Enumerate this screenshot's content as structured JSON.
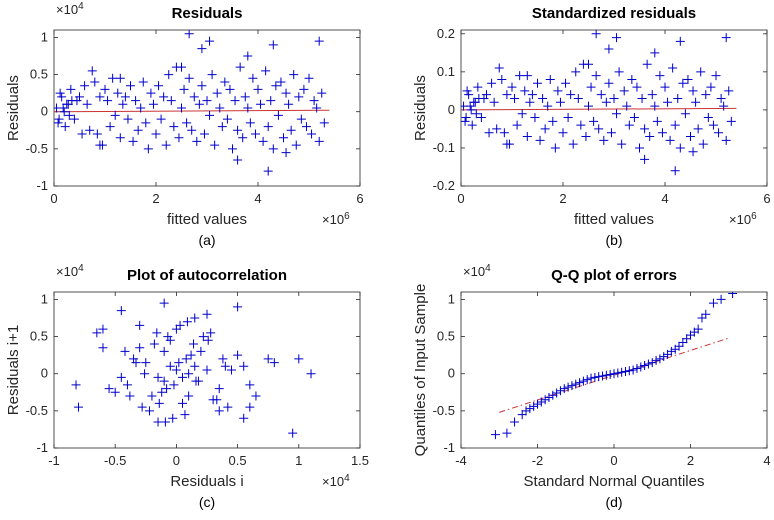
{
  "chart_data": [
    {
      "id": "a",
      "type": "scatter",
      "title": "Residuals",
      "xlabel": "fitted values",
      "ylabel": "Residuals",
      "sublabel": "(a)",
      "xlim": [
        0,
        6
      ],
      "ylim": [
        -1,
        1.1
      ],
      "xticks": [
        "0",
        "2",
        "4",
        "6"
      ],
      "yticks": [
        "-1",
        "-0.5",
        "0",
        "0.5",
        "1"
      ],
      "x_exponent": "×10^6",
      "y_exponent": "×10^4",
      "marker": "+",
      "marker_color": "#0000cc",
      "fit_line": {
        "points": [
          [
            0,
            0.0
          ],
          [
            5.4,
            0.02
          ]
        ],
        "color": "#cc3333"
      },
      "x": [
        0.05,
        0.1,
        0.15,
        0.2,
        0.25,
        0.3,
        0.35,
        0.08,
        0.12,
        0.18,
        0.22,
        0.28,
        0.33,
        0.4,
        0.45,
        0.5,
        0.55,
        0.6,
        0.65,
        0.7,
        0.75,
        0.8,
        0.85,
        0.9,
        0.95,
        1.0,
        1.05,
        1.1,
        1.15,
        1.2,
        1.25,
        1.3,
        1.35,
        1.4,
        1.45,
        1.5,
        1.55,
        1.6,
        1.65,
        1.7,
        1.75,
        1.8,
        1.85,
        1.9,
        1.95,
        2.0,
        2.05,
        2.1,
        2.15,
        2.2,
        2.25,
        2.3,
        2.35,
        2.4,
        2.45,
        2.5,
        2.55,
        2.6,
        2.65,
        2.7,
        2.75,
        2.8,
        2.85,
        2.9,
        2.95,
        3.0,
        3.05,
        3.1,
        3.15,
        3.2,
        3.25,
        3.3,
        3.35,
        3.4,
        3.45,
        3.5,
        3.55,
        3.6,
        3.65,
        3.7,
        3.75,
        3.8,
        3.85,
        3.9,
        3.95,
        4.0,
        4.05,
        4.1,
        4.15,
        4.2,
        4.25,
        4.3,
        4.35,
        4.4,
        4.45,
        4.5,
        4.55,
        4.6,
        4.65,
        4.7,
        4.75,
        4.8,
        4.85,
        4.9,
        4.95,
        5.0,
        5.05,
        5.1,
        5.15,
        5.2,
        5.25,
        5.3,
        2.65,
        2.9,
        3.05,
        3.8,
        4.3,
        4.2,
        2.5,
        3.6,
        4.55,
        1.3,
        0.9,
        5.2
      ],
      "y": [
        0.05,
        -0.1,
        0.2,
        0.0,
        0.1,
        -0.05,
        0.15,
        -0.15,
        0.25,
        0.05,
        -0.2,
        0.1,
        0.3,
        -0.1,
        0.15,
        0.2,
        -0.3,
        0.35,
        0.1,
        -0.25,
        0.55,
        0.4,
        -0.3,
        0.2,
        -0.45,
        0.3,
        0.15,
        -0.2,
        0.45,
        -0.05,
        0.25,
        -0.35,
        0.1,
        0.2,
        -0.1,
        0.35,
        -0.4,
        0.15,
        -0.25,
        0.05,
        0.4,
        -0.15,
        -0.5,
        0.25,
        0.1,
        -0.3,
        0.35,
        -0.1,
        0.2,
        -0.45,
        0.5,
        0.15,
        -0.2,
        0.6,
        -0.35,
        0.05,
        0.3,
        -0.15,
        0.45,
        -0.25,
        0.2,
        -0.4,
        0.1,
        0.35,
        -0.3,
        0.15,
        -0.05,
        0.5,
        -0.45,
        0.25,
        0.05,
        -0.2,
        0.4,
        -0.1,
        0.3,
        -0.5,
        0.15,
        -0.25,
        0.6,
        -0.35,
        0.2,
        0.05,
        -0.15,
        0.45,
        -0.3,
        0.3,
        0.1,
        -0.4,
        0.55,
        -0.2,
        0.15,
        -0.5,
        0.35,
        -0.05,
        0.4,
        -0.35,
        0.25,
        0.1,
        -0.25,
        0.5,
        -0.45,
        0.2,
        -0.1,
        0.3,
        -0.2,
        0.45,
        -0.3,
        0.15,
        0.05,
        -0.4,
        0.25,
        -0.15,
        1.05,
        0.85,
        0.95,
        0.75,
        0.9,
        -0.8,
        0.6,
        -0.65,
        -0.55,
        0.45,
        -0.45,
        0.95
      ]
    },
    {
      "id": "b",
      "type": "scatter",
      "title": "Standardized residuals",
      "xlabel": "fitted values",
      "ylabel": "Residuals",
      "sublabel": "(b)",
      "xlim": [
        0,
        6
      ],
      "ylim": [
        -0.2,
        0.21
      ],
      "xticks": [
        "0",
        "2",
        "4",
        "6"
      ],
      "yticks": [
        "-0.2",
        "-0.1",
        "0",
        "0.1",
        "0.2"
      ],
      "x_exponent": "×10^6",
      "marker": "+",
      "marker_color": "#0000cc",
      "fit_line": {
        "points": [
          [
            0,
            0.0
          ],
          [
            5.4,
            0.004
          ]
        ],
        "color": "#cc3333"
      },
      "x": [
        0.05,
        0.1,
        0.15,
        0.2,
        0.25,
        0.3,
        0.35,
        0.08,
        0.12,
        0.18,
        0.22,
        0.28,
        0.33,
        0.4,
        0.45,
        0.5,
        0.55,
        0.6,
        0.65,
        0.7,
        0.75,
        0.8,
        0.85,
        0.9,
        0.95,
        1.0,
        1.05,
        1.1,
        1.15,
        1.2,
        1.25,
        1.3,
        1.35,
        1.4,
        1.45,
        1.5,
        1.55,
        1.6,
        1.65,
        1.7,
        1.75,
        1.8,
        1.85,
        1.9,
        1.95,
        2.0,
        2.05,
        2.1,
        2.15,
        2.2,
        2.25,
        2.3,
        2.35,
        2.4,
        2.45,
        2.5,
        2.55,
        2.6,
        2.65,
        2.7,
        2.75,
        2.8,
        2.85,
        2.9,
        2.95,
        3.0,
        3.05,
        3.1,
        3.15,
        3.2,
        3.25,
        3.3,
        3.35,
        3.4,
        3.45,
        3.5,
        3.55,
        3.6,
        3.65,
        3.7,
        3.75,
        3.8,
        3.85,
        3.9,
        3.95,
        4.0,
        4.05,
        4.1,
        4.15,
        4.2,
        4.25,
        4.3,
        4.35,
        4.4,
        4.45,
        4.5,
        4.55,
        4.6,
        4.65,
        4.7,
        4.75,
        4.8,
        4.85,
        4.9,
        4.95,
        5.0,
        5.05,
        5.1,
        5.15,
        5.2,
        5.25,
        5.3,
        2.65,
        2.9,
        3.05,
        3.8,
        4.3,
        4.2,
        2.5,
        3.6,
        4.55,
        1.3,
        0.9,
        5.2
      ],
      "y": [
        0.01,
        -0.02,
        0.04,
        0.0,
        0.02,
        -0.01,
        0.03,
        -0.03,
        0.05,
        0.01,
        -0.04,
        0.02,
        0.06,
        -0.02,
        0.03,
        0.04,
        -0.06,
        0.07,
        0.02,
        -0.05,
        0.11,
        0.08,
        -0.06,
        0.04,
        -0.09,
        0.06,
        0.03,
        -0.04,
        0.09,
        -0.01,
        0.05,
        -0.07,
        0.02,
        0.04,
        -0.02,
        0.07,
        -0.08,
        0.03,
        -0.05,
        0.01,
        0.08,
        -0.03,
        -0.1,
        0.05,
        0.02,
        -0.06,
        0.07,
        -0.02,
        0.04,
        -0.09,
        0.1,
        0.03,
        -0.04,
        0.12,
        -0.07,
        0.01,
        0.06,
        -0.03,
        0.09,
        -0.05,
        0.04,
        -0.08,
        0.02,
        0.07,
        -0.06,
        0.03,
        -0.01,
        0.1,
        -0.09,
        0.05,
        0.01,
        -0.04,
        0.08,
        -0.02,
        0.06,
        -0.1,
        0.03,
        -0.05,
        0.12,
        -0.07,
        0.04,
        0.01,
        -0.03,
        0.09,
        -0.06,
        0.06,
        0.02,
        -0.08,
        0.11,
        -0.04,
        0.03,
        -0.1,
        0.07,
        -0.01,
        0.08,
        -0.07,
        0.05,
        0.02,
        -0.05,
        0.1,
        -0.09,
        0.04,
        -0.02,
        0.06,
        -0.04,
        0.09,
        -0.06,
        0.03,
        0.01,
        -0.08,
        0.05,
        -0.03,
        0.2,
        0.16,
        0.19,
        0.15,
        0.18,
        -0.16,
        0.12,
        -0.13,
        -0.11,
        0.09,
        -0.09,
        0.19
      ]
    },
    {
      "id": "c",
      "type": "scatter",
      "title": "Plot of autocorrelation",
      "xlabel": "Residuals i",
      "ylabel": "Residuals i+1",
      "sublabel": "(c)",
      "xlim": [
        -1,
        1.5
      ],
      "ylim": [
        -1,
        1.1
      ],
      "xticks": [
        "-1",
        "-0.5",
        "0",
        "0.5",
        "1",
        "1.5"
      ],
      "yticks": [
        "-1",
        "-0.5",
        "0",
        "0.5",
        "1"
      ],
      "x_exponent": "×10^4",
      "y_exponent": "×10^4",
      "marker": "+",
      "marker_color": "#0000cc",
      "x": [
        0.0,
        0.05,
        -0.05,
        0.1,
        -0.1,
        0.02,
        -0.02,
        0.08,
        -0.08,
        0.15,
        -0.15,
        0.2,
        -0.2,
        0.12,
        -0.12,
        0.25,
        -0.25,
        0.3,
        -0.3,
        0.18,
        -0.18,
        0.05,
        -0.05,
        0.35,
        -0.35,
        0.4,
        -0.4,
        0.22,
        -0.22,
        0.1,
        -0.1,
        0.45,
        -0.45,
        0.28,
        -0.28,
        0.0,
        0.5,
        -0.5,
        0.33,
        -0.33,
        0.07,
        -0.07,
        0.55,
        -0.55,
        0.14,
        -0.14,
        0.6,
        -0.6,
        0.38,
        -0.38,
        0.03,
        -0.03,
        0.26,
        -0.26,
        0.42,
        -0.42,
        0.16,
        -0.16,
        0.09,
        -0.09,
        -0.82,
        -0.8,
        -0.65,
        -0.6,
        0.75,
        0.8,
        0.95,
        1.0,
        1.1,
        0.65,
        -0.1,
        0.15,
        0.5,
        -0.45,
        0.6,
        0.55,
        -0.15,
        0.25,
        -0.3,
        0.35
      ],
      "y": [
        0.05,
        -0.05,
        0.1,
        0.0,
        -0.1,
        0.15,
        -0.15,
        0.2,
        -0.2,
        0.1,
        -0.05,
        0.3,
        -0.3,
        0.25,
        -0.25,
        0.05,
        0.15,
        -0.35,
        0.35,
        -0.1,
        0.4,
        -0.4,
        0.45,
        -0.2,
        0.2,
        0.1,
        -0.15,
        0.5,
        -0.5,
        -0.3,
        0.3,
        0.05,
        -0.05,
        0.55,
        -0.45,
        0.6,
        0.25,
        -0.25,
        -0.35,
        0.15,
        -0.55,
        0.5,
        0.1,
        -0.2,
        0.4,
        -0.4,
        -0.15,
        0.35,
        0.2,
        -0.3,
        0.65,
        -0.6,
        0.45,
        0.0,
        -0.45,
        0.3,
        -0.1,
        0.55,
        0.7,
        -0.65,
        -0.15,
        -0.45,
        0.55,
        0.6,
        0.2,
        0.15,
        -0.8,
        0.2,
        0.0,
        -0.3,
        0.95,
        0.75,
        0.9,
        0.85,
        -0.45,
        -0.6,
        -0.65,
        0.8,
        0.65,
        -0.5
      ]
    },
    {
      "id": "d",
      "type": "scatter",
      "title": "Q-Q plot of errors",
      "xlabel": "Standard Normal Quantiles",
      "ylabel": "Quantiles of Input Sample",
      "sublabel": "(d)",
      "xlim": [
        -4,
        4
      ],
      "ylim": [
        -1,
        1.1
      ],
      "xticks": [
        "-4",
        "-2",
        "0",
        "2",
        "4"
      ],
      "yticks": [
        "-1",
        "-0.5",
        "0",
        "0.5",
        "1"
      ],
      "y_exponent": "×10^4",
      "marker": "+",
      "marker_color": "#0000cc",
      "fit_line": {
        "points": [
          [
            -3.0,
            -0.52
          ],
          [
            3.0,
            0.48
          ]
        ],
        "color": "#cc3333",
        "dash": true
      },
      "x": [
        -3.1,
        -2.8,
        -2.6,
        -2.4,
        -2.3,
        -2.2,
        -2.1,
        -2.0,
        -1.9,
        -1.8,
        -1.7,
        -1.6,
        -1.5,
        -1.4,
        -1.3,
        -1.2,
        -1.1,
        -1.0,
        -0.9,
        -0.8,
        -0.7,
        -0.6,
        -0.5,
        -0.4,
        -0.3,
        -0.2,
        -0.1,
        0.0,
        0.1,
        0.2,
        0.3,
        0.4,
        0.5,
        0.6,
        0.7,
        0.8,
        0.9,
        1.0,
        1.1,
        1.2,
        1.3,
        1.4,
        1.5,
        1.6,
        1.7,
        1.8,
        1.9,
        2.0,
        2.1,
        2.2,
        2.3,
        2.4,
        2.6,
        2.8,
        3.1
      ],
      "y": [
        -0.82,
        -0.8,
        -0.65,
        -0.55,
        -0.5,
        -0.47,
        -0.44,
        -0.41,
        -0.38,
        -0.35,
        -0.32,
        -0.29,
        -0.26,
        -0.23,
        -0.2,
        -0.18,
        -0.16,
        -0.14,
        -0.12,
        -0.1,
        -0.08,
        -0.06,
        -0.05,
        -0.04,
        -0.03,
        -0.02,
        -0.01,
        0.0,
        0.01,
        0.02,
        0.03,
        0.04,
        0.05,
        0.07,
        0.09,
        0.11,
        0.13,
        0.15,
        0.18,
        0.2,
        0.23,
        0.26,
        0.3,
        0.33,
        0.37,
        0.42,
        0.47,
        0.52,
        0.56,
        0.6,
        0.75,
        0.8,
        0.95,
        1.0,
        1.08
      ]
    }
  ]
}
